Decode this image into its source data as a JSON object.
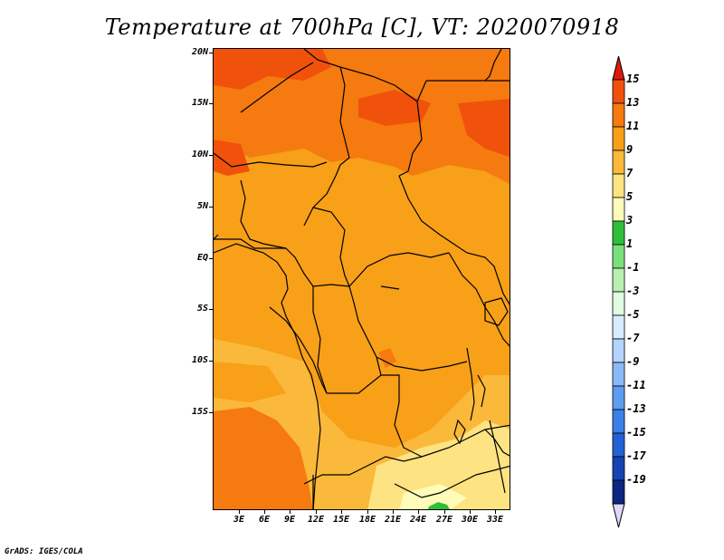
{
  "title": "Temperature at 700hPa [C], VT: 2020070918",
  "credit": "GrADS: IGES/COLA",
  "map": {
    "region": "Central Africa",
    "y_axis_labels": [
      "20N",
      "15N",
      "10N",
      "5N",
      "EQ",
      "5S",
      "10S",
      "15S"
    ],
    "x_axis_labels": [
      "3E",
      "6E",
      "9E",
      "12E",
      "15E",
      "18E",
      "21E",
      "24E",
      "27E",
      "30E",
      "33E"
    ]
  },
  "colorbar": {
    "labels": [
      "15",
      "13",
      "11",
      "9",
      "7",
      "5",
      "3",
      "1",
      "-1",
      "-3",
      "-5",
      "-7",
      "-9",
      "-11",
      "-13",
      "-15",
      "-17",
      "-19"
    ],
    "colors": [
      "#e8340c",
      "#f0520c",
      "#f57a10",
      "#f7a018",
      "#fab93a",
      "#fde381",
      "#fffbb9",
      "#2fbe3a",
      "#7ae07a",
      "#b7f0b0",
      "#e1fde1",
      "#d7ecff",
      "#b4d3ff",
      "#8bbaf7",
      "#5e9cf0",
      "#3a80e8",
      "#2361d6",
      "#1643b2",
      "#0c2580",
      "#061060"
    ],
    "top_arrow_color": "#e01a0a",
    "bottom_arrow_color": "#dcd8ff"
  }
}
